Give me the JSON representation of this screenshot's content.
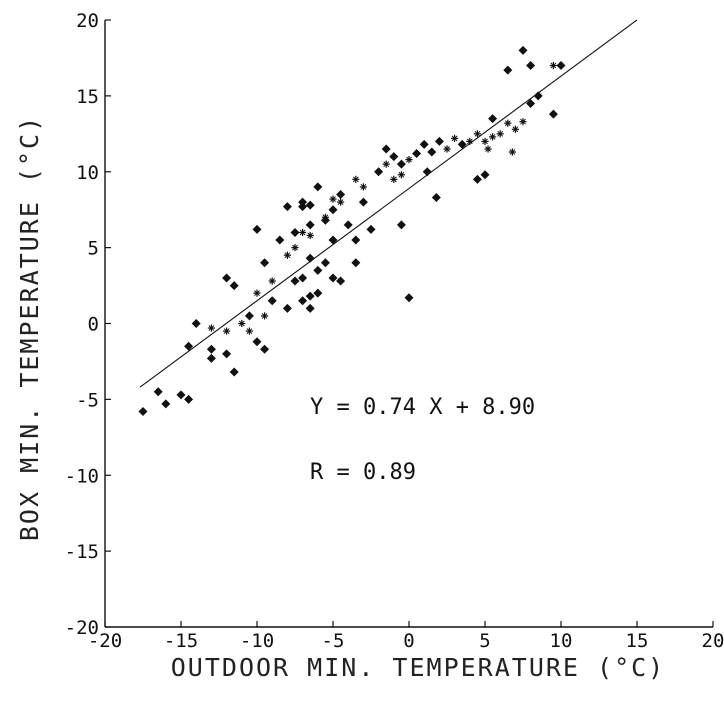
{
  "chart_data": {
    "type": "scatter",
    "title": "",
    "xlabel": "OUTDOOR MIN. TEMPERATURE (°C)",
    "ylabel": "BOX MIN. TEMPERATURE (°C)",
    "xlim": [
      -20,
      20
    ],
    "ylim": [
      -20,
      20
    ],
    "x_ticks": [
      "-20",
      "-15",
      "-10",
      "-5",
      "0",
      "5",
      "10",
      "15",
      "20"
    ],
    "y_ticks": [
      "20",
      "15",
      "10",
      "5",
      "0",
      "-5",
      "-10",
      "-15",
      "-20"
    ],
    "grid": false,
    "regression": {
      "equation_label": "Y = 0.74 X + 8.90",
      "r_label": "R = 0.89",
      "slope": 0.74,
      "intercept": 8.9,
      "x_range": [
        -17.7,
        15
      ]
    },
    "series": [
      {
        "marker": "filled-diamond",
        "points": [
          [
            -17.5,
            -5.8
          ],
          [
            -16.5,
            -4.5
          ],
          [
            -16,
            -5.3
          ],
          [
            -15,
            -4.7
          ],
          [
            -14.5,
            -5
          ],
          [
            -14.5,
            -1.5
          ],
          [
            -14,
            0
          ],
          [
            -13,
            -1.7
          ],
          [
            -13,
            -2.3
          ],
          [
            -12,
            -2
          ],
          [
            -12,
            3
          ],
          [
            -11.5,
            -3.2
          ],
          [
            -11.5,
            2.5
          ],
          [
            -10.5,
            0.5
          ],
          [
            -10,
            6.2
          ],
          [
            -10,
            -1.2
          ],
          [
            -9.5,
            -1.7
          ],
          [
            -9.5,
            4
          ],
          [
            -9,
            1.5
          ],
          [
            -8.5,
            5.5
          ],
          [
            -8,
            7.7
          ],
          [
            -8,
            1
          ],
          [
            -7.5,
            6
          ],
          [
            -7.5,
            2.8
          ],
          [
            -7,
            7.7
          ],
          [
            -7,
            8
          ],
          [
            -7,
            3
          ],
          [
            -7,
            1.5
          ],
          [
            -6.5,
            7.8
          ],
          [
            -6.5,
            6.5
          ],
          [
            -6.5,
            4.3
          ],
          [
            -6.5,
            1.8
          ],
          [
            -6.5,
            1
          ],
          [
            -6,
            9
          ],
          [
            -6,
            3.5
          ],
          [
            -6,
            2
          ],
          [
            -5.5,
            6.8
          ],
          [
            -5.5,
            4
          ],
          [
            -5,
            7.5
          ],
          [
            -5,
            5.5
          ],
          [
            -5,
            3
          ],
          [
            -4.5,
            8.5
          ],
          [
            -4.5,
            2.8
          ],
          [
            -4,
            6.5
          ],
          [
            -3.5,
            5.5
          ],
          [
            -3.5,
            4
          ],
          [
            -3,
            8
          ],
          [
            -2.5,
            6.2
          ],
          [
            -2,
            10
          ],
          [
            -1.5,
            11.5
          ],
          [
            -1,
            11
          ],
          [
            -0.5,
            10.5
          ],
          [
            -0.5,
            6.5
          ],
          [
            0,
            1.7
          ],
          [
            0.5,
            11.2
          ],
          [
            1,
            11.8
          ],
          [
            1.2,
            10
          ],
          [
            1.5,
            11.3
          ],
          [
            1.8,
            8.3
          ],
          [
            2,
            12
          ],
          [
            3.5,
            11.8
          ],
          [
            4.5,
            9.5
          ],
          [
            5,
            9.8
          ],
          [
            5.5,
            13.5
          ],
          [
            6.5,
            16.7
          ],
          [
            7.5,
            18
          ],
          [
            8,
            14.5
          ],
          [
            8,
            17
          ],
          [
            8.5,
            15
          ],
          [
            9.5,
            13.8
          ],
          [
            10,
            17
          ]
        ]
      },
      {
        "marker": "open-star",
        "points": [
          [
            -13,
            -0.3
          ],
          [
            -12,
            -0.5
          ],
          [
            -11,
            0
          ],
          [
            -10.5,
            -0.5
          ],
          [
            -10,
            2
          ],
          [
            -9.5,
            0.5
          ],
          [
            -9,
            2.8
          ],
          [
            -8,
            4.5
          ],
          [
            -7.5,
            5
          ],
          [
            -7,
            6
          ],
          [
            -6.5,
            5.8
          ],
          [
            -5.5,
            7
          ],
          [
            -5,
            8.2
          ],
          [
            -4.5,
            8
          ],
          [
            -3.5,
            9.5
          ],
          [
            -3,
            9
          ],
          [
            -1.5,
            10.5
          ],
          [
            -1,
            9.5
          ],
          [
            -0.5,
            9.8
          ],
          [
            0,
            10.8
          ],
          [
            2.5,
            11.5
          ],
          [
            3,
            12.2
          ],
          [
            4,
            12
          ],
          [
            4.5,
            12.5
          ],
          [
            5,
            12
          ],
          [
            5.2,
            11.5
          ],
          [
            5.5,
            12.3
          ],
          [
            6,
            12.5
          ],
          [
            6.5,
            13.2
          ],
          [
            6.8,
            11.3
          ],
          [
            7,
            12.8
          ],
          [
            7.5,
            13.3
          ],
          [
            9.5,
            17
          ]
        ]
      }
    ]
  }
}
